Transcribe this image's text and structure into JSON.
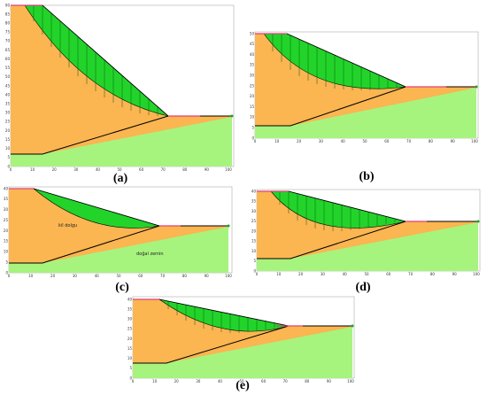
{
  "figure": {
    "panels": [
      {
        "id": "a",
        "caption": "(a)",
        "x_ticks": [
          "0",
          "10",
          "20",
          "30",
          "40",
          "50",
          "60",
          "70",
          "80",
          "90",
          "100"
        ],
        "y_ticks": [
          "0",
          "5",
          "10",
          "15",
          "20",
          "25",
          "30",
          "35",
          "40",
          "45",
          "50",
          "55",
          "60",
          "65",
          "70",
          "75",
          "80",
          "85",
          "90"
        ],
        "notes": []
      },
      {
        "id": "b",
        "caption": "(b)",
        "x_ticks": [
          "0",
          "10",
          "20",
          "30",
          "40",
          "50",
          "60",
          "70",
          "80",
          "90",
          "100"
        ],
        "y_ticks": [
          "0",
          "5",
          "10",
          "15",
          "20",
          "25",
          "30",
          "35",
          "40",
          "45",
          "50"
        ],
        "notes": []
      },
      {
        "id": "c",
        "caption": "(c)",
        "x_ticks": [
          "0",
          "10",
          "20",
          "30",
          "40",
          "50",
          "60",
          "70",
          "80",
          "90",
          "100"
        ],
        "y_ticks": [
          "0",
          "5",
          "10",
          "15",
          "20",
          "25",
          "30",
          "35",
          "40"
        ],
        "notes": [
          {
            "text": "kil dolgu"
          },
          {
            "text": "doğal zemin"
          }
        ]
      },
      {
        "id": "d",
        "caption": "(d)",
        "x_ticks": [
          "0",
          "10",
          "20",
          "30",
          "40",
          "50",
          "60",
          "70",
          "80",
          "90",
          "100"
        ],
        "y_ticks": [
          "0",
          "5",
          "10",
          "15",
          "20",
          "25",
          "30",
          "35",
          "40"
        ],
        "notes": []
      },
      {
        "id": "e",
        "caption": "(e)",
        "x_ticks": [
          "0",
          "10",
          "20",
          "30",
          "40",
          "50",
          "60",
          "70",
          "80",
          "90",
          "100"
        ],
        "y_ticks": [
          "0",
          "5",
          "10",
          "15",
          "20",
          "25",
          "30",
          "35",
          "40"
        ],
        "notes": []
      }
    ],
    "colors": {
      "fill": "#fbb551",
      "natural": "#a6f47e",
      "slide": "#22d42a",
      "line": "#000000",
      "surface": "#e0407a"
    }
  }
}
